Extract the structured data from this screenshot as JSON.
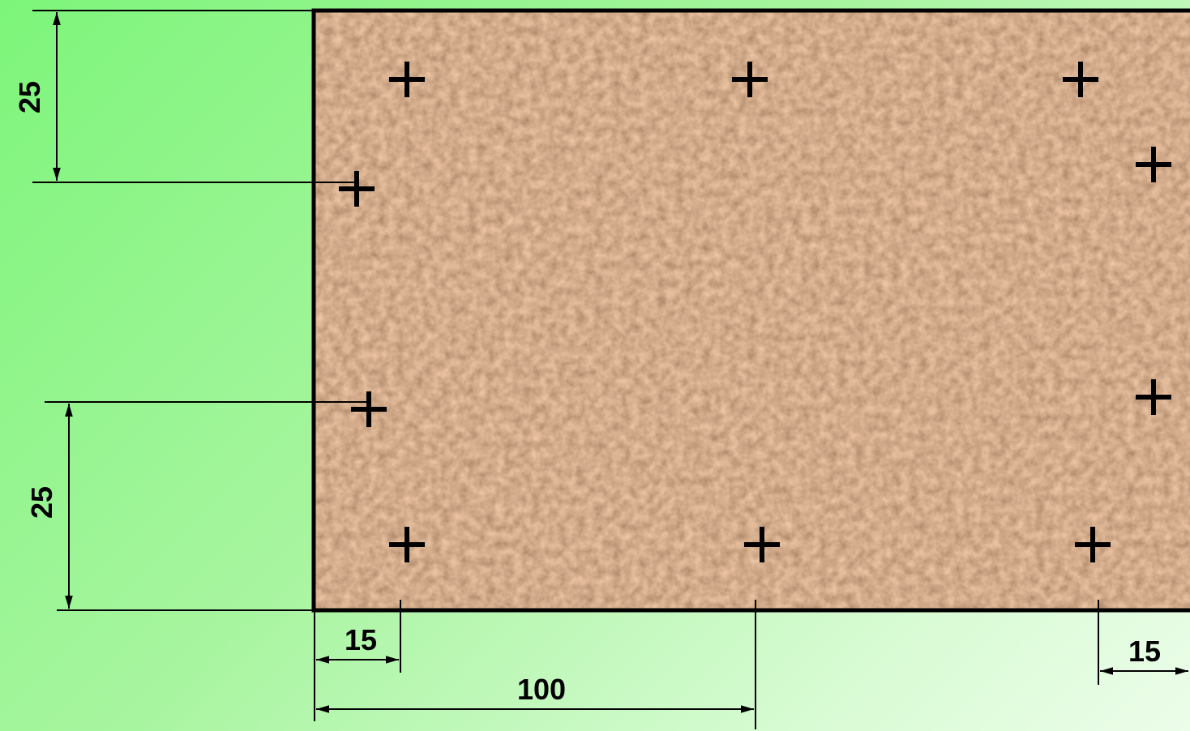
{
  "diagram": {
    "dimensions": {
      "top_vertical": "25",
      "bottom_vertical": "25",
      "left_horizontal_short": "15",
      "horizontal_long": "100",
      "right_horizontal_short": "15"
    },
    "colors": {
      "background_start": "#7df57a",
      "background_end": "#ecfde9",
      "board_base": "#c9946a",
      "board_dark": "#7a4a2a",
      "board_light": "#f0cfa0",
      "lines": "#000000"
    },
    "markers": {
      "symbol": "+",
      "count": 10
    }
  }
}
